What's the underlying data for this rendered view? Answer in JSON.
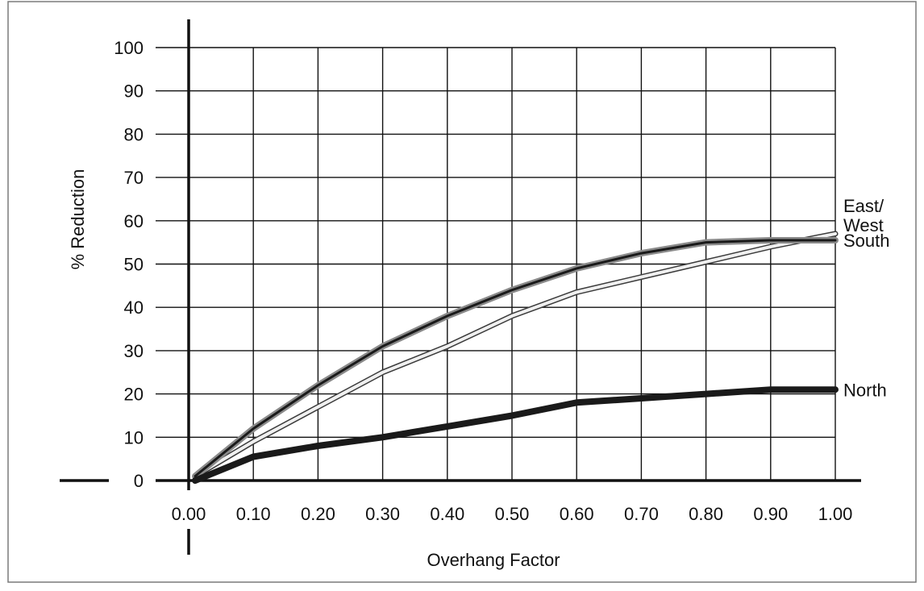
{
  "chart_data": {
    "type": "line",
    "title": "",
    "xlabel": "Overhang Factor",
    "ylabel": "% Reduction",
    "xlim": [
      0.0,
      1.0
    ],
    "ylim": [
      0,
      100
    ],
    "x_ticks": [
      "0.00",
      "0.10",
      "0.20",
      "0.30",
      "0.40",
      "0.50",
      "0.60",
      "0.70",
      "0.80",
      "0.90",
      "1.00"
    ],
    "y_ticks": [
      "0",
      "10",
      "20",
      "30",
      "40",
      "50",
      "60",
      "70",
      "80",
      "90",
      "100"
    ],
    "grid": true,
    "series": [
      {
        "name": "South",
        "color": "#1a1a1a",
        "style": "dark-line-with-gray-halo",
        "x": [
          0.01,
          0.1,
          0.2,
          0.3,
          0.4,
          0.5,
          0.6,
          0.7,
          0.8,
          0.9,
          1.0
        ],
        "y": [
          1,
          12,
          22,
          31,
          38,
          44,
          49,
          52.5,
          55,
          55.5,
          55.5
        ]
      },
      {
        "name": "East/\nWest",
        "color": "#f0f0f0",
        "style": "light-line-with-dark-outline",
        "x": [
          0.01,
          0.1,
          0.2,
          0.3,
          0.4,
          0.5,
          0.6,
          0.7,
          0.8,
          0.9,
          1.0
        ],
        "y": [
          1,
          9,
          17,
          25,
          31,
          38,
          43.5,
          47,
          50.5,
          54,
          57
        ]
      },
      {
        "name": "North",
        "color": "#1a1a1a",
        "style": "thick-dark-line",
        "x": [
          0.01,
          0.1,
          0.2,
          0.3,
          0.4,
          0.5,
          0.6,
          0.7,
          0.8,
          0.9,
          1.0
        ],
        "y": [
          0,
          5.5,
          8,
          10,
          12.5,
          15,
          18,
          19,
          20,
          21,
          21
        ]
      }
    ]
  }
}
